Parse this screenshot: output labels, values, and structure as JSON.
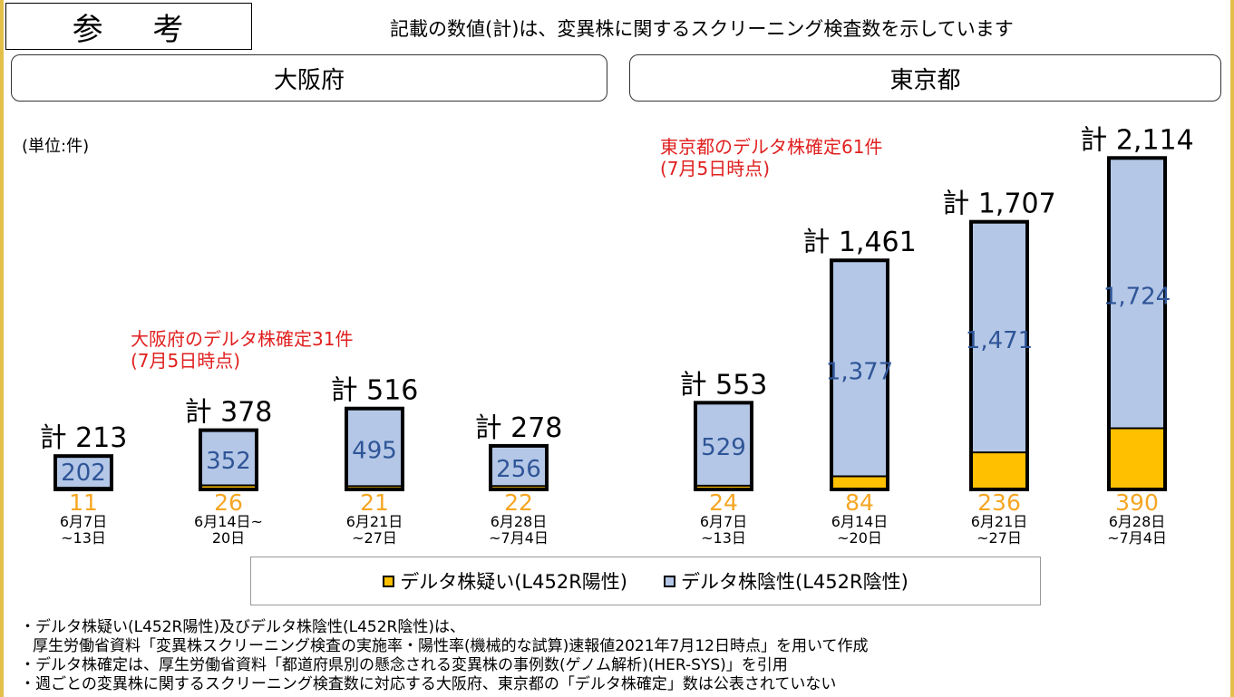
{
  "header": {
    "ref_label": "参 考",
    "note": "記載の数値(計)は、変異株に関するスクリーニング検査数を示しています"
  },
  "regions": {
    "osaka": "大阪府",
    "tokyo": "東京都"
  },
  "unit_label": "(単位:件)",
  "annotations": {
    "osaka_line1": "大阪府のデルタ株確定31件",
    "osaka_line2": "(7月5日時点)",
    "tokyo_line1": "東京都のデルタ株確定61件",
    "tokyo_line2": "(7月5日時点)"
  },
  "legend": {
    "positive": "デルタ株疑い(L452R陽性)",
    "negative": "デルタ株陰性(L452R陰性)"
  },
  "footnotes": [
    "・デルタ株疑い(L452R陽性)及びデルタ株陰性(L452R陰性)は、",
    "厚生労働省資料「変異株スクリーニング検査の実施率・陽性率(機械的な試算)速報値2021年7月12日時点」を用いて作成",
    "・デルタ株確定は、厚生労働省資料「都道府県別の懸念される変異株の事例数(ゲノム解析)(HER-SYS)」を引用",
    "・週ごとの変異株に関するスクリーニング検査数に対応する大阪府、東京都の「デルタ株確定」数は公表されていない"
  ],
  "colors": {
    "positive": "#ffc000",
    "negative": "#b4c7e7",
    "negative_label": "#2f5597",
    "positive_label": "#f5a623",
    "annotation": "#e02020"
  },
  "chart_data": [
    {
      "type": "bar",
      "region": "大阪府",
      "stacked": true,
      "categories": [
        [
          "6月7日",
          "~13日"
        ],
        [
          "6月14日~",
          "20日"
        ],
        [
          "6月21日",
          "~27日"
        ],
        [
          "6月28日",
          "~7月4日"
        ]
      ],
      "series": [
        {
          "name": "デルタ株疑い(L452R陽性)",
          "values": [
            11,
            26,
            21,
            22
          ]
        },
        {
          "name": "デルタ株陰性(L452R陰性)",
          "values": [
            202,
            352,
            495,
            256
          ]
        }
      ],
      "totals": [
        "計 213",
        "計 378",
        "計 516",
        "計 278"
      ]
    },
    {
      "type": "bar",
      "region": "東京都",
      "stacked": true,
      "categories": [
        [
          "6月7日",
          "~13日"
        ],
        [
          "6月14日",
          "~20日"
        ],
        [
          "6月21日",
          "~27日"
        ],
        [
          "6月28日",
          "~7月4日"
        ]
      ],
      "series": [
        {
          "name": "デルタ株疑い(L452R陽性)",
          "values": [
            24,
            84,
            236,
            390
          ]
        },
        {
          "name": "デルタ株陰性(L452R陰性)",
          "values": [
            529,
            1377,
            1471,
            1724
          ]
        }
      ],
      "totals": [
        "計 553",
        "計 1,461",
        "計 1,707",
        "計 2,114"
      ]
    }
  ]
}
